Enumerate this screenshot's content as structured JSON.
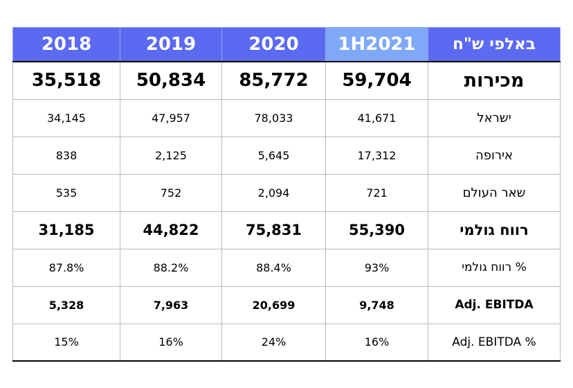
{
  "header": {
    "cols": [
      "2018",
      "2019",
      "2020",
      "1H2021"
    ],
    "label": "באלפי ש\"ח"
  },
  "rows": [
    {
      "label": "מכירות",
      "values": [
        "35,518",
        "50,834",
        "85,772",
        "59,704"
      ]
    },
    {
      "label": "ישראל",
      "values": [
        "34,145",
        "47,957",
        "78,033",
        "41,671"
      ]
    },
    {
      "label": "אירופה",
      "values": [
        "838",
        "2,125",
        "5,645",
        "17,312"
      ]
    },
    {
      "label": "שאר העולם",
      "values": [
        "535",
        "752",
        "2,094",
        "721"
      ]
    },
    {
      "label": "רווח גולמי",
      "values": [
        "31,185",
        "44,822",
        "75,831",
        "55,390"
      ]
    },
    {
      "label": "% רווח גולמי",
      "values": [
        "87.8%",
        "88.2%",
        "88.4%",
        "93%"
      ]
    },
    {
      "label": "Adj. EBITDA",
      "values": [
        "5,328",
        "7,963",
        "20,699",
        "9,748"
      ]
    },
    {
      "label": "Adj. EBITDA %",
      "values": [
        "15%",
        "16%",
        "24%",
        "16%"
      ]
    }
  ],
  "colors": {
    "header_bg": "#5b6af0",
    "header_highlight_bg": "#7fa8f7",
    "header_text": "#ffffff"
  }
}
